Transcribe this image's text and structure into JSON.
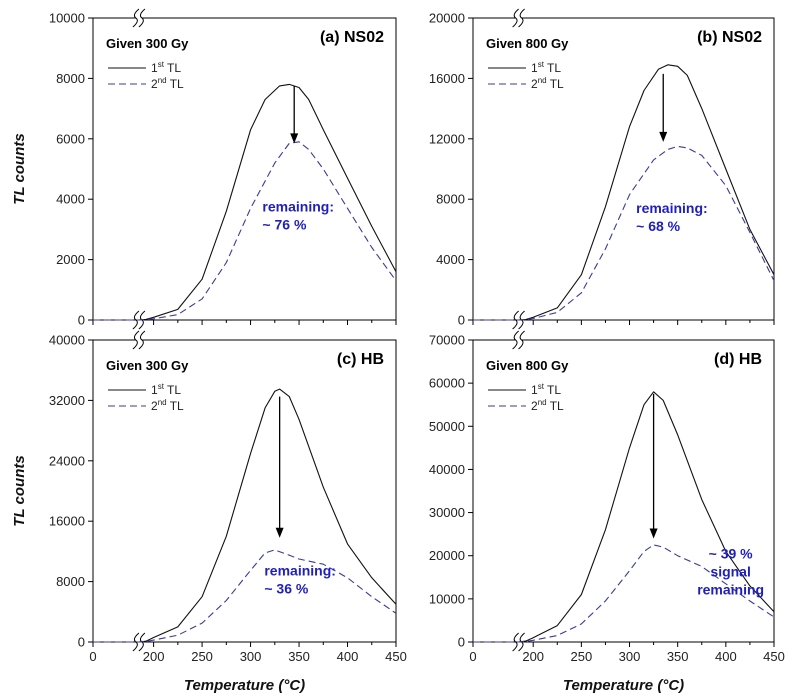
{
  "chart_data": [
    {
      "type": "line",
      "id": "a",
      "title": "(a) NS02",
      "dose_label": "Given 300 Gy",
      "xlabel": "Temperature (°C)",
      "ylabel": "TL counts",
      "xlim": [
        0,
        450
      ],
      "ylim": [
        0,
        10000
      ],
      "x_ticks": [
        "0",
        "200",
        "250",
        "300",
        "350",
        "400",
        "450"
      ],
      "y_ticks": [
        "0",
        "2000",
        "4000",
        "6000",
        "8000",
        "10000"
      ],
      "axis_break": true,
      "legend": [
        {
          "base": "1",
          "sup": "st",
          "text": " TL",
          "style": "solid"
        },
        {
          "base": "2",
          "sup": "nd",
          "text": " TL",
          "style": "dashed"
        }
      ],
      "series": [
        {
          "name": "1st TL",
          "style": "solid",
          "x": [
            0,
            150,
            175,
            200,
            225,
            250,
            275,
            300,
            315,
            330,
            340,
            350,
            360,
            375,
            400,
            425,
            450
          ],
          "y": [
            0,
            0,
            20,
            90,
            350,
            1350,
            3600,
            6300,
            7300,
            7750,
            7800,
            7700,
            7300,
            6300,
            4700,
            3100,
            1600
          ]
        },
        {
          "name": "2nd TL",
          "style": "dashed",
          "x": [
            0,
            150,
            175,
            200,
            225,
            250,
            275,
            300,
            325,
            340,
            350,
            360,
            375,
            400,
            425,
            450
          ],
          "y": [
            0,
            0,
            10,
            40,
            180,
            700,
            1900,
            3700,
            5200,
            5850,
            5900,
            5650,
            5000,
            3700,
            2400,
            1300
          ]
        }
      ],
      "arrow": {
        "x": 345,
        "y_from": 7750,
        "y_to": 5850
      },
      "annotation": {
        "lines": [
          "remaining:",
          "~ 76 %"
        ],
        "x": 370,
        "y": 3000
      }
    },
    {
      "type": "line",
      "id": "b",
      "title": "(b) NS02",
      "dose_label": "Given 800 Gy",
      "xlabel": "Temperature (°C)",
      "ylabel": "TL counts",
      "xlim": [
        0,
        450
      ],
      "ylim": [
        0,
        20000
      ],
      "x_ticks": [
        "0",
        "200",
        "250",
        "300",
        "350",
        "400",
        "450"
      ],
      "y_ticks": [
        "0",
        "4000",
        "8000",
        "12000",
        "16000",
        "20000"
      ],
      "axis_break": true,
      "legend": [
        {
          "base": "1",
          "sup": "st",
          "text": " TL",
          "style": "solid"
        },
        {
          "base": "2",
          "sup": "nd",
          "text": " TL",
          "style": "dashed"
        }
      ],
      "series": [
        {
          "name": "1st TL",
          "style": "solid",
          "x": [
            0,
            150,
            175,
            200,
            225,
            250,
            275,
            300,
            315,
            330,
            340,
            350,
            360,
            375,
            400,
            425,
            450
          ],
          "y": [
            0,
            0,
            30,
            180,
            800,
            3000,
            7500,
            12800,
            15200,
            16600,
            16900,
            16800,
            16200,
            14000,
            10000,
            6000,
            3000
          ]
        },
        {
          "name": "2nd TL",
          "style": "dashed",
          "x": [
            0,
            150,
            175,
            200,
            225,
            250,
            275,
            300,
            325,
            340,
            350,
            360,
            375,
            400,
            425,
            450
          ],
          "y": [
            0,
            0,
            20,
            100,
            500,
            1800,
            4700,
            8300,
            10600,
            11300,
            11500,
            11400,
            10900,
            8900,
            5800,
            2600
          ]
        }
      ],
      "arrow": {
        "x": 335,
        "y_from": 16300,
        "y_to": 11800
      },
      "annotation": {
        "lines": [
          "remaining:",
          "~ 68 %"
        ],
        "x": 365,
        "y": 5900
      }
    },
    {
      "type": "line",
      "id": "c",
      "title": "(c) HB",
      "dose_label": "Given 300 Gy",
      "xlabel": "Temperature (°C)",
      "ylabel": "TL counts",
      "xlim": [
        0,
        450
      ],
      "ylim": [
        0,
        40000
      ],
      "x_ticks": [
        "0",
        "200",
        "250",
        "300",
        "350",
        "400",
        "450"
      ],
      "y_ticks": [
        "0",
        "8000",
        "16000",
        "24000",
        "32000",
        "40000"
      ],
      "axis_break": true,
      "legend": [
        {
          "base": "1",
          "sup": "st",
          "text": " TL",
          "style": "solid"
        },
        {
          "base": "2",
          "sup": "nd",
          "text": " TL",
          "style": "dashed"
        }
      ],
      "series": [
        {
          "name": "1st TL",
          "style": "solid",
          "x": [
            0,
            150,
            175,
            200,
            225,
            250,
            275,
            300,
            315,
            325,
            330,
            340,
            350,
            375,
            400,
            425,
            450
          ],
          "y": [
            0,
            0,
            100,
            600,
            2000,
            6000,
            14000,
            25000,
            31000,
            33200,
            33500,
            32500,
            29500,
            20500,
            13000,
            8500,
            5000
          ]
        },
        {
          "name": "2nd TL",
          "style": "dashed",
          "x": [
            0,
            150,
            175,
            200,
            225,
            250,
            275,
            300,
            315,
            325,
            340,
            350,
            375,
            400,
            425,
            450
          ],
          "y": [
            0,
            0,
            50,
            250,
            900,
            2500,
            5500,
            9500,
            11800,
            12200,
            11500,
            11000,
            10300,
            8500,
            6000,
            3800
          ]
        }
      ],
      "arrow": {
        "x": 330,
        "y_from": 32500,
        "y_to": 13800
      },
      "annotation": {
        "lines": [
          "remaining:",
          "~ 36 %"
        ],
        "x": 372,
        "y": 6400
      }
    },
    {
      "type": "line",
      "id": "d",
      "title": "(d) HB",
      "dose_label": "Given 800 Gy",
      "xlabel": "Temperature (°C)",
      "ylabel": "TL counts",
      "xlim": [
        0,
        450
      ],
      "ylim": [
        0,
        70000
      ],
      "x_ticks": [
        "0",
        "200",
        "250",
        "300",
        "350",
        "400",
        "450"
      ],
      "y_ticks": [
        "0",
        "10000",
        "20000",
        "30000",
        "40000",
        "50000",
        "60000",
        "70000"
      ],
      "axis_break": true,
      "legend": [
        {
          "base": "1",
          "sup": "st",
          "text": " TL",
          "style": "solid"
        },
        {
          "base": "2",
          "sup": "nd",
          "text": " TL",
          "style": "dashed"
        }
      ],
      "series": [
        {
          "name": "1st TL",
          "style": "solid",
          "x": [
            0,
            150,
            175,
            200,
            225,
            250,
            275,
            300,
            315,
            325,
            335,
            350,
            375,
            400,
            425,
            450
          ],
          "y": [
            0,
            0,
            200,
            1000,
            3800,
            11000,
            26000,
            45000,
            55000,
            58000,
            56000,
            48000,
            33000,
            21000,
            13000,
            7000
          ]
        },
        {
          "name": "2nd TL",
          "style": "dashed",
          "x": [
            0,
            150,
            175,
            200,
            225,
            250,
            275,
            300,
            315,
            325,
            335,
            350,
            375,
            400,
            425,
            450
          ],
          "y": [
            0,
            0,
            100,
            400,
            1500,
            4200,
            9500,
            16500,
            21000,
            22500,
            22000,
            20000,
            17500,
            13500,
            9500,
            5800
          ]
        }
      ],
      "arrow": {
        "x": 325,
        "y_from": 57500,
        "y_to": 24000
      },
      "annotation": {
        "lines": [
          "~ 39 %",
          "signal",
          "remaining"
        ],
        "x": 405,
        "y": 11000
      }
    }
  ]
}
